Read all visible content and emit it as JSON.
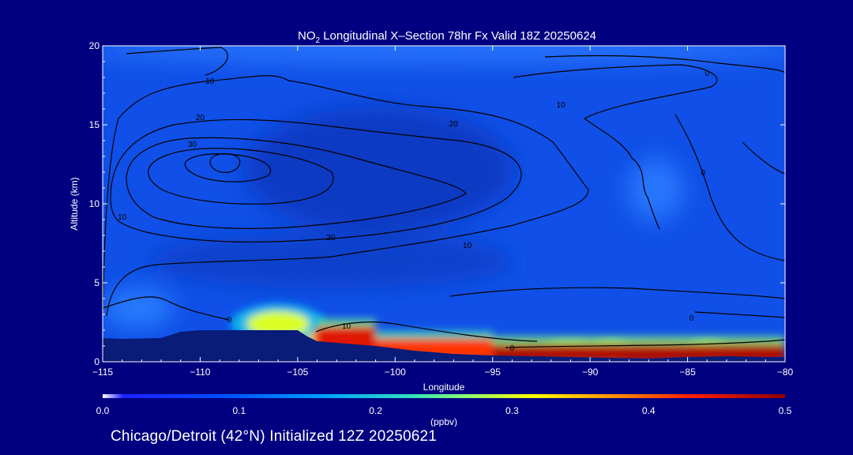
{
  "colors": {
    "background": "#000080",
    "text": "#ffffff",
    "contour": "#000000",
    "terrain": "#081c78"
  },
  "chart_data": {
    "type": "heatmap",
    "title": {
      "prefix": "NO",
      "subscript": "2",
      "suffix": " Longitudinal X–Section 78hr  Fx Valid 18Z 20250624"
    },
    "xlabel": "Longitude",
    "ylabel": "Altitude (km)",
    "xlim": [
      -115,
      -80
    ],
    "ylim": [
      0,
      20
    ],
    "x_ticks": [
      -115,
      -110,
      -105,
      -100,
      -95,
      -90,
      -85,
      -80
    ],
    "x_tick_labels": [
      "−115",
      "−110",
      "−105",
      "−100",
      "−95",
      "−90",
      "−85",
      "−80"
    ],
    "y_ticks": [
      0,
      5,
      10,
      15,
      20
    ],
    "y_tick_labels": [
      "0",
      "5",
      "10",
      "15",
      "20"
    ],
    "colorbar": {
      "min": 0.0,
      "max": 0.5,
      "units": "(ppbv)",
      "ticks": [
        0.0,
        0.1,
        0.2,
        0.3,
        0.4,
        0.5
      ],
      "tick_labels": [
        "0.0",
        "0.1",
        "0.2",
        "0.3",
        "0.4",
        "0.5"
      ]
    },
    "terrain": [
      [
        -115,
        1.5
      ],
      [
        -114,
        1.45
      ],
      [
        -112,
        1.5
      ],
      [
        -111,
        1.9
      ],
      [
        -110,
        2.0
      ],
      [
        -108,
        2.0
      ],
      [
        -106,
        2.0
      ],
      [
        -105,
        2.0
      ],
      [
        -104.5,
        1.6
      ],
      [
        -104,
        1.3
      ],
      [
        -103,
        1.2
      ],
      [
        -101,
        1.0
      ],
      [
        -99,
        0.7
      ],
      [
        -97,
        0.5
      ],
      [
        -95,
        0.4
      ],
      [
        -93,
        0.35
      ],
      [
        -91,
        0.3
      ],
      [
        -89,
        0.25
      ],
      [
        -87,
        0.2
      ],
      [
        -85,
        0.3
      ],
      [
        -83,
        0.35
      ],
      [
        -81,
        0.3
      ],
      [
        -80,
        0.3
      ]
    ],
    "surface_layer": [
      {
        "x": [
          -104,
          -101
        ],
        "value": 0.45
      },
      {
        "x": [
          -101,
          -95
        ],
        "value": 0.42
      },
      {
        "x": [
          -95,
          -80
        ],
        "value": 0.48
      }
    ],
    "hotspots": [
      {
        "x": -106,
        "y": 2.4,
        "value": 0.3,
        "rx": 1.6,
        "ry": 0.8
      },
      {
        "x": -103.5,
        "y": 1.5,
        "value": 0.35,
        "rx": 1.0,
        "ry": 0.4
      },
      {
        "x": -91,
        "y": 0.8,
        "value": 0.3,
        "rx": 1.0,
        "ry": 0.35
      },
      {
        "x": -89,
        "y": 0.8,
        "value": 0.32,
        "rx": 0.8,
        "ry": 0.35
      },
      {
        "x": -84,
        "y": 0.9,
        "value": 0.28,
        "rx": 0.8,
        "ry": 0.3
      }
    ],
    "contour_labels": [
      {
        "x": -109.5,
        "y": 17.6,
        "text": "10"
      },
      {
        "x": -110,
        "y": 15.3,
        "text": "20"
      },
      {
        "x": -110.4,
        "y": 13.6,
        "text": "30"
      },
      {
        "x": -97,
        "y": 14.9,
        "text": "20"
      },
      {
        "x": -91.5,
        "y": 16.1,
        "text": "10"
      },
      {
        "x": -84,
        "y": 18.1,
        "text": "0"
      },
      {
        "x": -84.2,
        "y": 11.8,
        "text": "0"
      },
      {
        "x": -114,
        "y": 9.0,
        "text": "10"
      },
      {
        "x": -103.3,
        "y": 7.7,
        "text": "20"
      },
      {
        "x": -96.3,
        "y": 7.2,
        "text": "10"
      },
      {
        "x": -108.5,
        "y": 2.5,
        "text": "0"
      },
      {
        "x": -102.5,
        "y": 2.1,
        "text": "10"
      },
      {
        "x": -94,
        "y": 0.7,
        "text": "0"
      },
      {
        "x": -84.8,
        "y": 2.6,
        "text": "0"
      }
    ]
  },
  "footer": {
    "text": "Chicago/Detroit (42°N) Initialized 12Z 20250621"
  }
}
